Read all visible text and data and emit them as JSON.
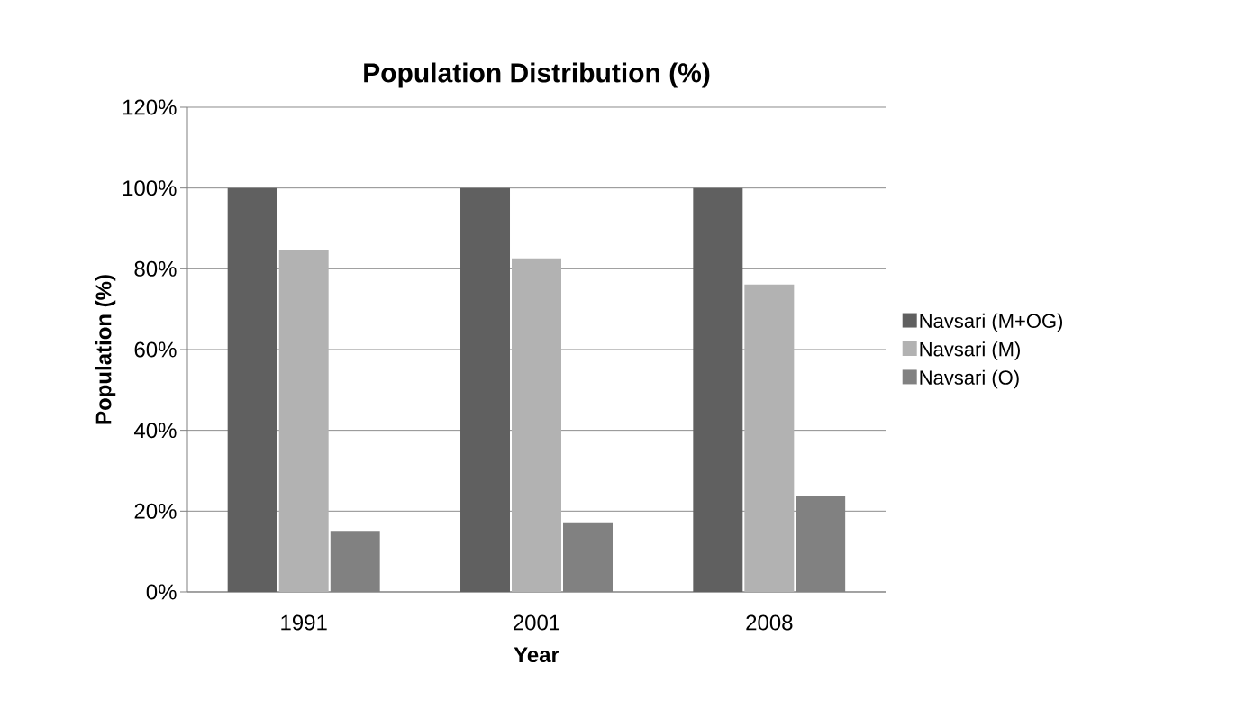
{
  "chart_data": {
    "type": "bar",
    "title": "Population Distribution (%)",
    "xlabel": "Year",
    "ylabel": "Population (%)",
    "categories": [
      "1991",
      "2001",
      "2008"
    ],
    "series": [
      {
        "name": "Navsari (M+OG)",
        "color": "#606060",
        "values": [
          100,
          100,
          100
        ]
      },
      {
        "name": "Navsari (M)",
        "color": "#b2b2b2",
        "values": [
          84.7,
          82.6,
          76.1
        ]
      },
      {
        "name": "Navsari (O)",
        "color": "#818181",
        "values": [
          15.1,
          17.2,
          23.7
        ]
      }
    ],
    "ylim": [
      0,
      120
    ],
    "yticks": [
      {
        "value": 0,
        "label": "0%"
      },
      {
        "value": 20,
        "label": "20%"
      },
      {
        "value": 40,
        "label": "40%"
      },
      {
        "value": 60,
        "label": "60%"
      },
      {
        "value": 80,
        "label": "80%"
      },
      {
        "value": 100,
        "label": "100%"
      },
      {
        "value": 120,
        "label": "120%"
      }
    ],
    "grid": "y",
    "legend": "right"
  }
}
